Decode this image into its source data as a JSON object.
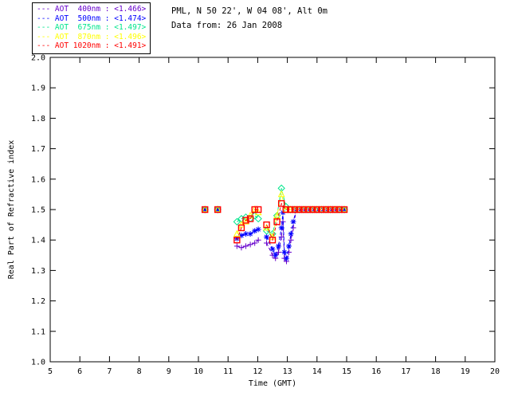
{
  "header": {
    "line1": "PML, N 50 22', W 04 08', Alt 0m",
    "line2": "Data from: 26 Jan 2008"
  },
  "legend": {
    "dash_glyph": "---",
    "rows": [
      {
        "label": "AOT  400nm : <1.466>",
        "color": "#6600CC",
        "marker": "plus"
      },
      {
        "label": "AOT  500nm : <1.474>",
        "color": "#0000FF",
        "marker": "asterisk"
      },
      {
        "label": "AOT  675nm : <1.497>",
        "color": "#00E68C",
        "marker": "diamond"
      },
      {
        "label": "AOT  870nm : <1.496>",
        "color": "#FFFF00",
        "marker": "triangle"
      },
      {
        "label": "AOT 1020nm : <1.491>",
        "color": "#FF0000",
        "marker": "square"
      }
    ]
  },
  "chart_data": {
    "type": "line",
    "title": "",
    "xlabel": "Time (GMT)",
    "ylabel": "Real Part of Refractive index",
    "xlim": [
      5,
      20
    ],
    "ylim": [
      1.0,
      2.0
    ],
    "xticks": [
      5,
      6,
      7,
      8,
      9,
      10,
      11,
      12,
      13,
      14,
      15,
      16,
      17,
      18,
      19,
      20
    ],
    "yticks": [
      1.0,
      1.1,
      1.2,
      1.3,
      1.4,
      1.5,
      1.6,
      1.7,
      1.8,
      1.9,
      2.0
    ],
    "grid": false,
    "legend_position": "top-left",
    "frame_color": "#000000",
    "line_style": "dashed",
    "series": [
      {
        "name": "AOT 400nm",
        "retrieved_value": "<1.466>",
        "color": "#6600CC",
        "marker": "plus",
        "segments": [
          [
            [
              10.22,
              1.5
            ]
          ],
          [
            [
              10.65,
              1.5
            ]
          ],
          [
            [
              11.3,
              1.38
            ],
            [
              11.45,
              1.375
            ],
            [
              11.6,
              1.38
            ],
            [
              11.75,
              1.385
            ],
            [
              11.9,
              1.39
            ],
            [
              12.02,
              1.4
            ]
          ],
          [
            [
              12.3,
              1.39
            ],
            [
              12.5,
              1.35
            ],
            [
              12.6,
              1.34
            ],
            [
              12.7,
              1.36
            ],
            [
              12.8,
              1.41
            ],
            [
              12.85,
              1.46
            ],
            [
              12.9,
              1.34
            ],
            [
              12.97,
              1.33
            ],
            [
              13.05,
              1.36
            ],
            [
              13.12,
              1.4
            ],
            [
              13.2,
              1.44
            ],
            [
              13.3,
              1.5
            ],
            [
              13.45,
              1.5
            ],
            [
              13.6,
              1.5
            ],
            [
              13.75,
              1.5
            ],
            [
              13.9,
              1.5
            ],
            [
              14.05,
              1.5
            ],
            [
              14.2,
              1.5
            ],
            [
              14.35,
              1.5
            ],
            [
              14.5,
              1.5
            ],
            [
              14.65,
              1.5
            ],
            [
              14.8,
              1.5
            ],
            [
              14.92,
              1.5
            ]
          ]
        ]
      },
      {
        "name": "AOT 500nm",
        "retrieved_value": "<1.474>",
        "color": "#0000FF",
        "marker": "asterisk",
        "segments": [
          [
            [
              10.22,
              1.5
            ]
          ],
          [
            [
              10.65,
              1.5
            ]
          ],
          [
            [
              11.3,
              1.405
            ],
            [
              11.45,
              1.415
            ],
            [
              11.6,
              1.42
            ],
            [
              11.75,
              1.42
            ],
            [
              11.9,
              1.43
            ],
            [
              12.02,
              1.435
            ]
          ],
          [
            [
              12.3,
              1.41
            ],
            [
              12.5,
              1.37
            ],
            [
              12.6,
              1.35
            ],
            [
              12.7,
              1.38
            ],
            [
              12.8,
              1.44
            ],
            [
              12.85,
              1.49
            ],
            [
              12.9,
              1.36
            ],
            [
              12.97,
              1.34
            ],
            [
              13.05,
              1.38
            ],
            [
              13.12,
              1.42
            ],
            [
              13.2,
              1.46
            ],
            [
              13.3,
              1.5
            ],
            [
              13.45,
              1.5
            ],
            [
              13.6,
              1.5
            ],
            [
              13.75,
              1.5
            ],
            [
              13.9,
              1.5
            ],
            [
              14.05,
              1.5
            ],
            [
              14.2,
              1.5
            ],
            [
              14.35,
              1.5
            ],
            [
              14.5,
              1.5
            ],
            [
              14.65,
              1.5
            ],
            [
              14.8,
              1.5
            ],
            [
              14.92,
              1.5
            ]
          ]
        ]
      },
      {
        "name": "AOT 675nm",
        "retrieved_value": "<1.497>",
        "color": "#00E68C",
        "marker": "diamond",
        "segments": [
          [
            [
              10.22,
              1.5
            ]
          ],
          [
            [
              10.65,
              1.5
            ]
          ],
          [
            [
              11.3,
              1.46
            ],
            [
              11.45,
              1.47
            ],
            [
              11.6,
              1.475
            ],
            [
              11.75,
              1.47
            ],
            [
              11.9,
              1.48
            ],
            [
              12.02,
              1.47
            ]
          ],
          [
            [
              12.3,
              1.43
            ],
            [
              12.5,
              1.42
            ],
            [
              12.65,
              1.48
            ],
            [
              12.8,
              1.57
            ],
            [
              12.95,
              1.51
            ],
            [
              13.1,
              1.5
            ],
            [
              13.25,
              1.5
            ],
            [
              13.4,
              1.5
            ],
            [
              13.55,
              1.5
            ],
            [
              13.7,
              1.5
            ],
            [
              13.85,
              1.5
            ],
            [
              14.0,
              1.5
            ],
            [
              14.15,
              1.5
            ],
            [
              14.3,
              1.5
            ],
            [
              14.45,
              1.5
            ],
            [
              14.6,
              1.5
            ],
            [
              14.75,
              1.5
            ],
            [
              14.92,
              1.5
            ]
          ]
        ]
      },
      {
        "name": "AOT 870nm",
        "retrieved_value": "<1.496>",
        "color": "#FFFF00",
        "marker": "triangle",
        "segments": [
          [
            [
              10.22,
              1.5
            ]
          ],
          [
            [
              10.65,
              1.5
            ]
          ],
          [
            [
              11.3,
              1.42
            ],
            [
              11.45,
              1.45
            ],
            [
              11.6,
              1.46
            ],
            [
              11.75,
              1.48
            ],
            [
              11.9,
              1.5
            ],
            [
              12.02,
              1.49
            ]
          ],
          [
            [
              12.3,
              1.44
            ],
            [
              12.5,
              1.41
            ],
            [
              12.65,
              1.48
            ],
            [
              12.8,
              1.55
            ],
            [
              12.95,
              1.5
            ],
            [
              13.1,
              1.5
            ],
            [
              13.25,
              1.5
            ],
            [
              13.4,
              1.5
            ],
            [
              13.55,
              1.5
            ],
            [
              13.7,
              1.5
            ],
            [
              13.85,
              1.5
            ],
            [
              14.0,
              1.5
            ],
            [
              14.15,
              1.5
            ],
            [
              14.3,
              1.5
            ],
            [
              14.45,
              1.5
            ],
            [
              14.6,
              1.5
            ],
            [
              14.75,
              1.5
            ],
            [
              14.92,
              1.5
            ]
          ]
        ]
      },
      {
        "name": "AOT 1020nm",
        "retrieved_value": "<1.491>",
        "color": "#FF0000",
        "marker": "square",
        "segments": [
          [
            [
              10.22,
              1.5
            ]
          ],
          [
            [
              10.65,
              1.5
            ]
          ],
          [
            [
              11.3,
              1.4
            ],
            [
              11.45,
              1.44
            ],
            [
              11.6,
              1.465
            ],
            [
              11.75,
              1.47
            ],
            [
              11.9,
              1.5
            ],
            [
              12.02,
              1.5
            ]
          ],
          [
            [
              12.3,
              1.45
            ],
            [
              12.5,
              1.4
            ],
            [
              12.65,
              1.46
            ],
            [
              12.8,
              1.52
            ],
            [
              12.95,
              1.5
            ],
            [
              13.1,
              1.5
            ],
            [
              13.25,
              1.5
            ],
            [
              13.4,
              1.5
            ],
            [
              13.55,
              1.5
            ],
            [
              13.7,
              1.5
            ],
            [
              13.85,
              1.5
            ],
            [
              14.0,
              1.5
            ],
            [
              14.15,
              1.5
            ],
            [
              14.3,
              1.5
            ],
            [
              14.45,
              1.5
            ],
            [
              14.6,
              1.5
            ],
            [
              14.75,
              1.5
            ],
            [
              14.92,
              1.5
            ]
          ]
        ]
      }
    ]
  }
}
